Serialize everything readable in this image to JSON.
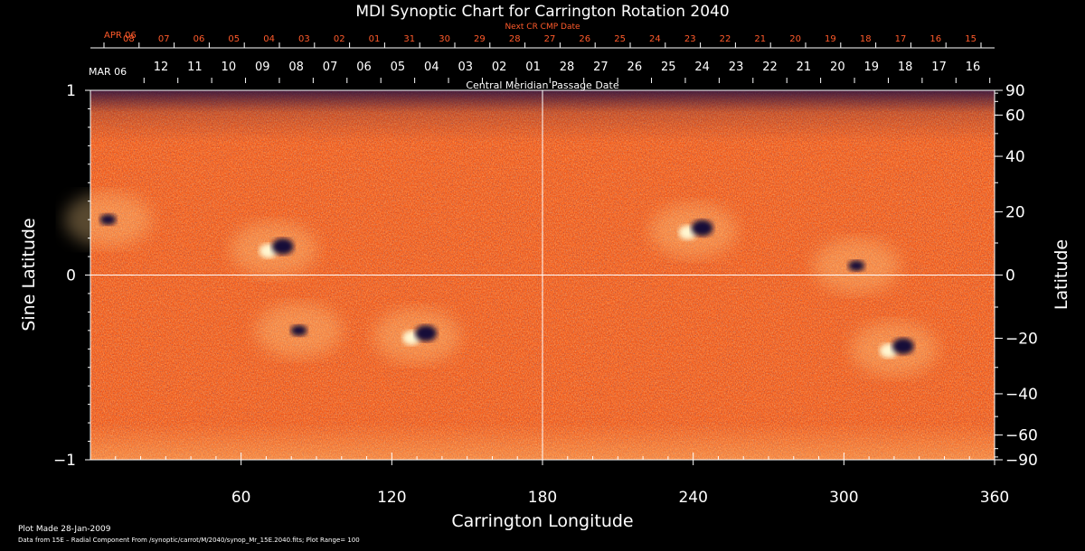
{
  "chart_data": {
    "type": "heatmap",
    "title": "MDI Synoptic Chart for Carrington Rotation 2040",
    "top_axis_label": "Next CR CMP Date",
    "top_axis_start_label": "APR 06",
    "top_axis_ticks": [
      "08",
      "07",
      "06",
      "05",
      "04",
      "03",
      "02",
      "01",
      "31",
      "30",
      "29",
      "28",
      "27",
      "26",
      "25",
      "24",
      "23",
      "22",
      "21",
      "20",
      "19",
      "18",
      "17",
      "16",
      "15"
    ],
    "date_axis_start_label": "MAR 06",
    "date_axis_ticks": [
      "12",
      "11",
      "10",
      "09",
      "08",
      "07",
      "06",
      "05",
      "04",
      "03",
      "02",
      "01",
      "28",
      "27",
      "26",
      "25",
      "24",
      "23",
      "22",
      "21",
      "20",
      "19",
      "18",
      "17",
      "16"
    ],
    "date_axis_label": "Central Meridian Passage Date",
    "xlabel": "Carrington Longitude",
    "xlim": [
      0,
      360
    ],
    "x_ticks": [
      60,
      120,
      180,
      240,
      300,
      360
    ],
    "ylabel_left": "Sine Latitude",
    "ylim": [
      -1,
      1
    ],
    "y_ticks_left": [
      1,
      0,
      -1
    ],
    "ylabel_right": "Latitude",
    "y_ticks_right": [
      90,
      60,
      40,
      20,
      0,
      -20,
      -40,
      -60,
      -90
    ],
    "grid": true,
    "colormap": [
      "#14103a",
      "#c8300a",
      "#ff5a1e",
      "#ffe8a0"
    ],
    "active_regions": [
      {
        "lon": 7,
        "sinlat": 0.3,
        "polarity": "negative"
      },
      {
        "lon": 73,
        "sinlat": 0.14,
        "polarity": "bipolar"
      },
      {
        "lon": 83,
        "sinlat": -0.3,
        "polarity": "negative"
      },
      {
        "lon": 130,
        "sinlat": -0.33,
        "polarity": "bipolar"
      },
      {
        "lon": 240,
        "sinlat": 0.24,
        "polarity": "bipolar"
      },
      {
        "lon": 305,
        "sinlat": 0.05,
        "polarity": "negative"
      },
      {
        "lon": 320,
        "sinlat": -0.4,
        "polarity": "bipolar"
      }
    ]
  },
  "footer": {
    "plot_made": "Plot Made 28-Jan-2009",
    "data_source": "Data from 15E – Radial Component From /synoptic/carrot/M/2040/synop_Mr_15E.2040.fits; Plot Range=  100"
  }
}
